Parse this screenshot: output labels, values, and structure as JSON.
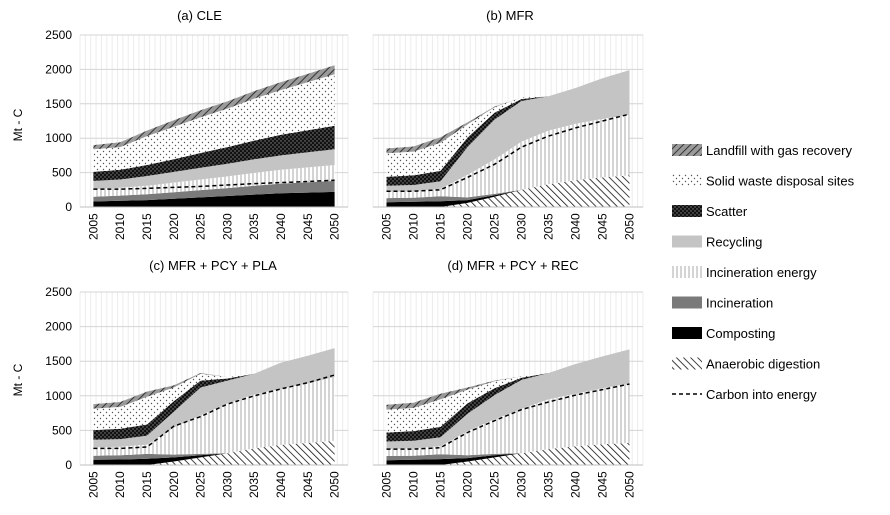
{
  "figure": {
    "ylabel": "Mt - C",
    "legend": [
      {
        "key": "lf",
        "label": "Landfill with gas recovery"
      },
      {
        "key": "sw",
        "label": "Solid waste disposal sites"
      },
      {
        "key": "sc",
        "label": "Scatter"
      },
      {
        "key": "rc",
        "label": "Recycling"
      },
      {
        "key": "ie",
        "label": "Incineration energy"
      },
      {
        "key": "in",
        "label": "Incineration"
      },
      {
        "key": "co",
        "label": "Composting"
      },
      {
        "key": "ad",
        "label": "Anaerobic digestion"
      },
      {
        "key": "ce",
        "label": "Carbon into energy"
      }
    ]
  },
  "chart_data": [
    {
      "type": "area",
      "title": "(a) CLE",
      "x": [
        2005,
        2010,
        2015,
        2020,
        2025,
        2030,
        2035,
        2040,
        2045,
        2050
      ],
      "ylim": [
        0,
        2500
      ],
      "yticks": [
        0,
        500,
        1000,
        1500,
        2000,
        2500
      ],
      "stacked": true,
      "series": [
        {
          "key": "ad",
          "name": "Anaerobic digestion",
          "values": [
            0,
            0,
            0,
            0,
            0,
            0,
            0,
            0,
            0,
            0
          ]
        },
        {
          "key": "co",
          "name": "Composting",
          "values": [
            80,
            90,
            100,
            120,
            140,
            160,
            180,
            200,
            210,
            220
          ]
        },
        {
          "key": "in",
          "name": "Incineration",
          "values": [
            70,
            75,
            85,
            95,
            105,
            115,
            130,
            140,
            150,
            160
          ]
        },
        {
          "key": "ie",
          "name": "Incineration energy",
          "values": [
            110,
            115,
            125,
            140,
            155,
            170,
            185,
            200,
            215,
            230
          ]
        },
        {
          "key": "rc",
          "name": "Recycling",
          "values": [
            120,
            120,
            140,
            155,
            170,
            185,
            200,
            210,
            220,
            230
          ]
        },
        {
          "key": "sc",
          "name": "Scatter",
          "values": [
            130,
            140,
            160,
            185,
            215,
            240,
            270,
            300,
            320,
            340
          ]
        },
        {
          "key": "sw",
          "name": "Solid waste disposal sites",
          "values": [
            330,
            330,
            420,
            470,
            520,
            560,
            610,
            650,
            700,
            750
          ]
        },
        {
          "key": "lf",
          "name": "Landfill with gas recovery",
          "values": [
            60,
            70,
            80,
            95,
            100,
            105,
            110,
            115,
            120,
            130
          ]
        }
      ],
      "line": {
        "key": "ce",
        "name": "Carbon into energy",
        "values": [
          260,
          260,
          270,
          285,
          300,
          320,
          340,
          355,
          370,
          390
        ]
      }
    },
    {
      "type": "area",
      "title": "(b) MFR",
      "x": [
        2005,
        2010,
        2015,
        2020,
        2025,
        2030,
        2035,
        2040,
        2045,
        2050
      ],
      "ylim": [
        0,
        2500
      ],
      "yticks": [
        0,
        500,
        1000,
        1500,
        2000,
        2500
      ],
      "stacked": true,
      "series": [
        {
          "key": "ad",
          "name": "Anaerobic digestion",
          "values": [
            0,
            0,
            0,
            60,
            150,
            250,
            330,
            390,
            430,
            460
          ]
        },
        {
          "key": "co",
          "name": "Composting",
          "values": [
            70,
            75,
            85,
            40,
            20,
            0,
            0,
            0,
            0,
            0
          ]
        },
        {
          "key": "in",
          "name": "Incineration",
          "values": [
            60,
            60,
            70,
            40,
            20,
            0,
            0,
            0,
            0,
            0
          ]
        },
        {
          "key": "ie",
          "name": "Incineration energy",
          "values": [
            90,
            95,
            110,
            330,
            500,
            700,
            780,
            820,
            850,
            880
          ]
        },
        {
          "key": "rc",
          "name": "Recycling",
          "values": [
            90,
            90,
            110,
            400,
            580,
            590,
            500,
            520,
            590,
            650
          ]
        },
        {
          "key": "sc",
          "name": "Scatter",
          "values": [
            130,
            140,
            150,
            140,
            100,
            30,
            0,
            0,
            0,
            0
          ]
        },
        {
          "key": "sw",
          "name": "Solid waste disposal sites",
          "values": [
            340,
            345,
            410,
            190,
            80,
            20,
            0,
            0,
            0,
            0
          ]
        },
        {
          "key": "lf",
          "name": "Landfill with gas recovery",
          "values": [
            70,
            75,
            80,
            30,
            10,
            0,
            0,
            0,
            0,
            0
          ]
        }
      ],
      "line": {
        "key": "ce",
        "name": "Carbon into energy",
        "values": [
          230,
          230,
          250,
          430,
          620,
          870,
          1030,
          1150,
          1250,
          1350
        ]
      }
    },
    {
      "type": "area",
      "title": "(c) MFR + PCY + PLA",
      "x": [
        2005,
        2010,
        2015,
        2020,
        2025,
        2030,
        2035,
        2040,
        2045,
        2050
      ],
      "ylim": [
        0,
        2500
      ],
      "yticks": [
        0,
        500,
        1000,
        1500,
        2000,
        2500
      ],
      "stacked": true,
      "series": [
        {
          "key": "ad",
          "name": "Anaerobic digestion",
          "values": [
            0,
            0,
            0,
            50,
            110,
            170,
            240,
            290,
            320,
            350
          ]
        },
        {
          "key": "co",
          "name": "Composting",
          "values": [
            75,
            80,
            90,
            60,
            30,
            0,
            0,
            0,
            0,
            0
          ]
        },
        {
          "key": "in",
          "name": "Incineration",
          "values": [
            60,
            60,
            70,
            40,
            20,
            0,
            0,
            0,
            0,
            0
          ]
        },
        {
          "key": "ie",
          "name": "Incineration energy",
          "values": [
            120,
            125,
            135,
            390,
            560,
            720,
            780,
            810,
            860,
            920
          ]
        },
        {
          "key": "rc",
          "name": "Recycling",
          "values": [
            110,
            110,
            130,
            230,
            400,
            330,
            300,
            380,
            400,
            420
          ]
        },
        {
          "key": "sc",
          "name": "Scatter",
          "values": [
            140,
            150,
            160,
            150,
            100,
            30,
            0,
            0,
            0,
            0
          ]
        },
        {
          "key": "sw",
          "name": "Solid waste disposal sites",
          "values": [
            310,
            315,
            400,
            200,
            100,
            20,
            0,
            0,
            0,
            0
          ]
        },
        {
          "key": "lf",
          "name": "Landfill with gas recovery",
          "values": [
            65,
            70,
            75,
            30,
            10,
            0,
            0,
            0,
            0,
            0
          ]
        }
      ],
      "line": {
        "key": "ce",
        "name": "Carbon into energy",
        "values": [
          240,
          240,
          260,
          560,
          700,
          880,
          1000,
          1100,
          1190,
          1300
        ]
      }
    },
    {
      "type": "area",
      "title": "(d) MFR + PCY + REC",
      "x": [
        2005,
        2010,
        2015,
        2020,
        2025,
        2030,
        2035,
        2040,
        2045,
        2050
      ],
      "ylim": [
        0,
        2500
      ],
      "yticks": [
        0,
        500,
        1000,
        1500,
        2000,
        2500
      ],
      "stacked": true,
      "series": [
        {
          "key": "ad",
          "name": "Anaerobic digestion",
          "values": [
            0,
            0,
            0,
            50,
            110,
            170,
            230,
            270,
            300,
            320
          ]
        },
        {
          "key": "co",
          "name": "Composting",
          "values": [
            70,
            75,
            85,
            50,
            30,
            0,
            0,
            0,
            0,
            0
          ]
        },
        {
          "key": "in",
          "name": "Incineration",
          "values": [
            60,
            60,
            70,
            40,
            20,
            0,
            0,
            0,
            0,
            0
          ]
        },
        {
          "key": "ie",
          "name": "Incineration energy",
          "values": [
            100,
            105,
            115,
            350,
            500,
            640,
            720,
            760,
            810,
            860
          ]
        },
        {
          "key": "rc",
          "name": "Recycling",
          "values": [
            110,
            110,
            130,
            250,
            350,
            420,
            380,
            430,
            460,
            490
          ]
        },
        {
          "key": "sc",
          "name": "Scatter",
          "values": [
            130,
            140,
            150,
            150,
            100,
            30,
            0,
            0,
            0,
            0
          ]
        },
        {
          "key": "sw",
          "name": "Solid waste disposal sites",
          "values": [
            330,
            335,
            400,
            200,
            100,
            20,
            0,
            0,
            0,
            0
          ]
        },
        {
          "key": "lf",
          "name": "Landfill with gas recovery",
          "values": [
            70,
            75,
            80,
            30,
            10,
            0,
            0,
            0,
            0,
            0
          ]
        }
      ],
      "line": {
        "key": "ce",
        "name": "Carbon into energy",
        "values": [
          230,
          230,
          250,
          470,
          640,
          800,
          910,
          1010,
          1090,
          1170
        ]
      }
    }
  ]
}
